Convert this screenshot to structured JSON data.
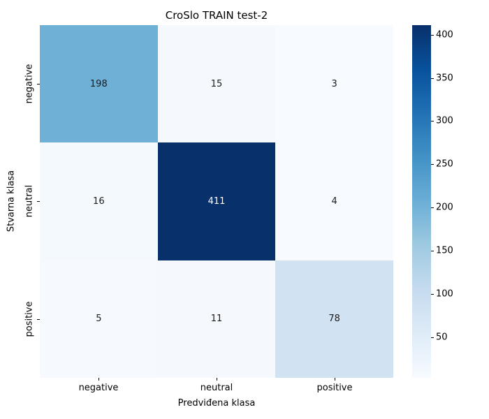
{
  "title": "CroSlo TRAIN test-2",
  "chart_data": {
    "type": "heatmap",
    "title": "CroSlo TRAIN test-2",
    "xlabel": "Predviđena klasa",
    "ylabel": "Stvarna klasa",
    "x_ticklabels": [
      "negative",
      "neutral",
      "positive"
    ],
    "y_ticklabels": [
      "negative",
      "neutral",
      "positive"
    ],
    "matrix": [
      [
        198,
        15,
        3
      ],
      [
        16,
        411,
        4
      ],
      [
        5,
        11,
        78
      ]
    ],
    "cell_colors": [
      [
        "#6fb0d6",
        "#f5f9fd",
        "#f7fbff"
      ],
      [
        "#f4f9fd",
        "#08306b",
        "#f7fafe"
      ],
      [
        "#f6fafe",
        "#f5f9fd",
        "#d1e2f2"
      ]
    ],
    "cell_text_colors": [
      [
        "#1a1a1a",
        "#1a1a1a",
        "#1a1a1a"
      ],
      [
        "#1a1a1a",
        "#ffffff",
        "#1a1a1a"
      ],
      [
        "#1a1a1a",
        "#1a1a1a",
        "#1a1a1a"
      ]
    ],
    "colormap": "Blues",
    "vmin": 3,
    "vmax": 411,
    "grid": false,
    "colorbar": {
      "position": "right",
      "ticks": [
        50,
        100,
        150,
        200,
        250,
        300,
        350,
        400
      ],
      "gradient_bottom_to_top": [
        "#f7fbff",
        "#deebf7",
        "#c6dbef",
        "#9ecae1",
        "#6baed6",
        "#4292c6",
        "#2171b5",
        "#08519c",
        "#08306b"
      ]
    }
  }
}
